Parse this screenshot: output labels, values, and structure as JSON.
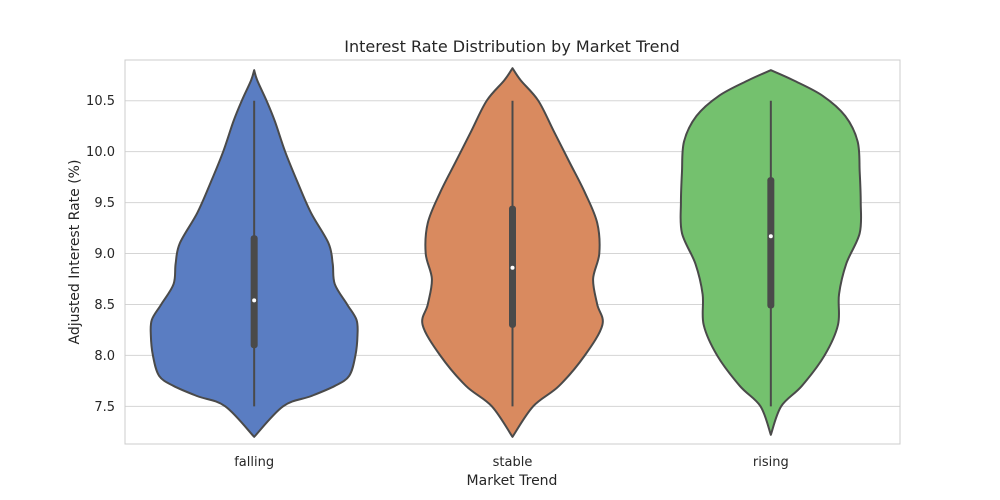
{
  "chart_data": {
    "type": "violin",
    "title": "Interest Rate Distribution by Market Trend",
    "xlabel": "Market Trend",
    "ylabel": "Adjusted Interest Rate (%)",
    "ylim": [
      7.13,
      10.9
    ],
    "yticks": [
      "7.5",
      "8.0",
      "8.5",
      "9.0",
      "9.5",
      "10.0",
      "10.5"
    ],
    "grid": true,
    "categories": [
      "falling",
      "stable",
      "rising"
    ],
    "colors": [
      "#5a7dc2",
      "#d98a5f",
      "#74c16e"
    ],
    "outline_color": "#4a4a4a",
    "series": [
      {
        "category": "falling",
        "min": 7.5,
        "q1": 8.07,
        "median": 8.54,
        "q3": 9.18,
        "max": 10.5,
        "profile": [
          [
            7.2,
            0.0
          ],
          [
            7.5,
            0.28
          ],
          [
            7.6,
            0.55
          ],
          [
            7.7,
            0.78
          ],
          [
            7.8,
            0.92
          ],
          [
            8.0,
            0.98
          ],
          [
            8.2,
            1.0
          ],
          [
            8.35,
            0.99
          ],
          [
            8.5,
            0.9
          ],
          [
            8.7,
            0.78
          ],
          [
            8.9,
            0.76
          ],
          [
            9.1,
            0.72
          ],
          [
            9.4,
            0.55
          ],
          [
            9.7,
            0.42
          ],
          [
            10.0,
            0.3
          ],
          [
            10.3,
            0.2
          ],
          [
            10.5,
            0.12
          ],
          [
            10.7,
            0.03
          ],
          [
            10.8,
            0.0
          ]
        ]
      },
      {
        "category": "stable",
        "min": 7.5,
        "q1": 8.27,
        "median": 8.86,
        "q3": 9.47,
        "max": 10.5,
        "profile": [
          [
            7.2,
            0.0
          ],
          [
            7.5,
            0.2
          ],
          [
            7.7,
            0.45
          ],
          [
            8.0,
            0.7
          ],
          [
            8.3,
            0.87
          ],
          [
            8.5,
            0.82
          ],
          [
            8.75,
            0.78
          ],
          [
            9.0,
            0.84
          ],
          [
            9.3,
            0.82
          ],
          [
            9.6,
            0.7
          ],
          [
            9.9,
            0.55
          ],
          [
            10.2,
            0.4
          ],
          [
            10.5,
            0.25
          ],
          [
            10.7,
            0.08
          ],
          [
            10.82,
            0.0
          ]
        ]
      },
      {
        "category": "rising",
        "min": 7.5,
        "q1": 8.46,
        "median": 9.17,
        "q3": 9.75,
        "max": 10.5,
        "profile": [
          [
            7.22,
            0.0
          ],
          [
            7.5,
            0.1
          ],
          [
            7.7,
            0.3
          ],
          [
            8.0,
            0.52
          ],
          [
            8.3,
            0.65
          ],
          [
            8.6,
            0.66
          ],
          [
            8.9,
            0.73
          ],
          [
            9.2,
            0.86
          ],
          [
            9.5,
            0.87
          ],
          [
            9.8,
            0.86
          ],
          [
            10.1,
            0.84
          ],
          [
            10.35,
            0.72
          ],
          [
            10.55,
            0.5
          ],
          [
            10.7,
            0.22
          ],
          [
            10.8,
            0.0
          ]
        ]
      }
    ]
  }
}
